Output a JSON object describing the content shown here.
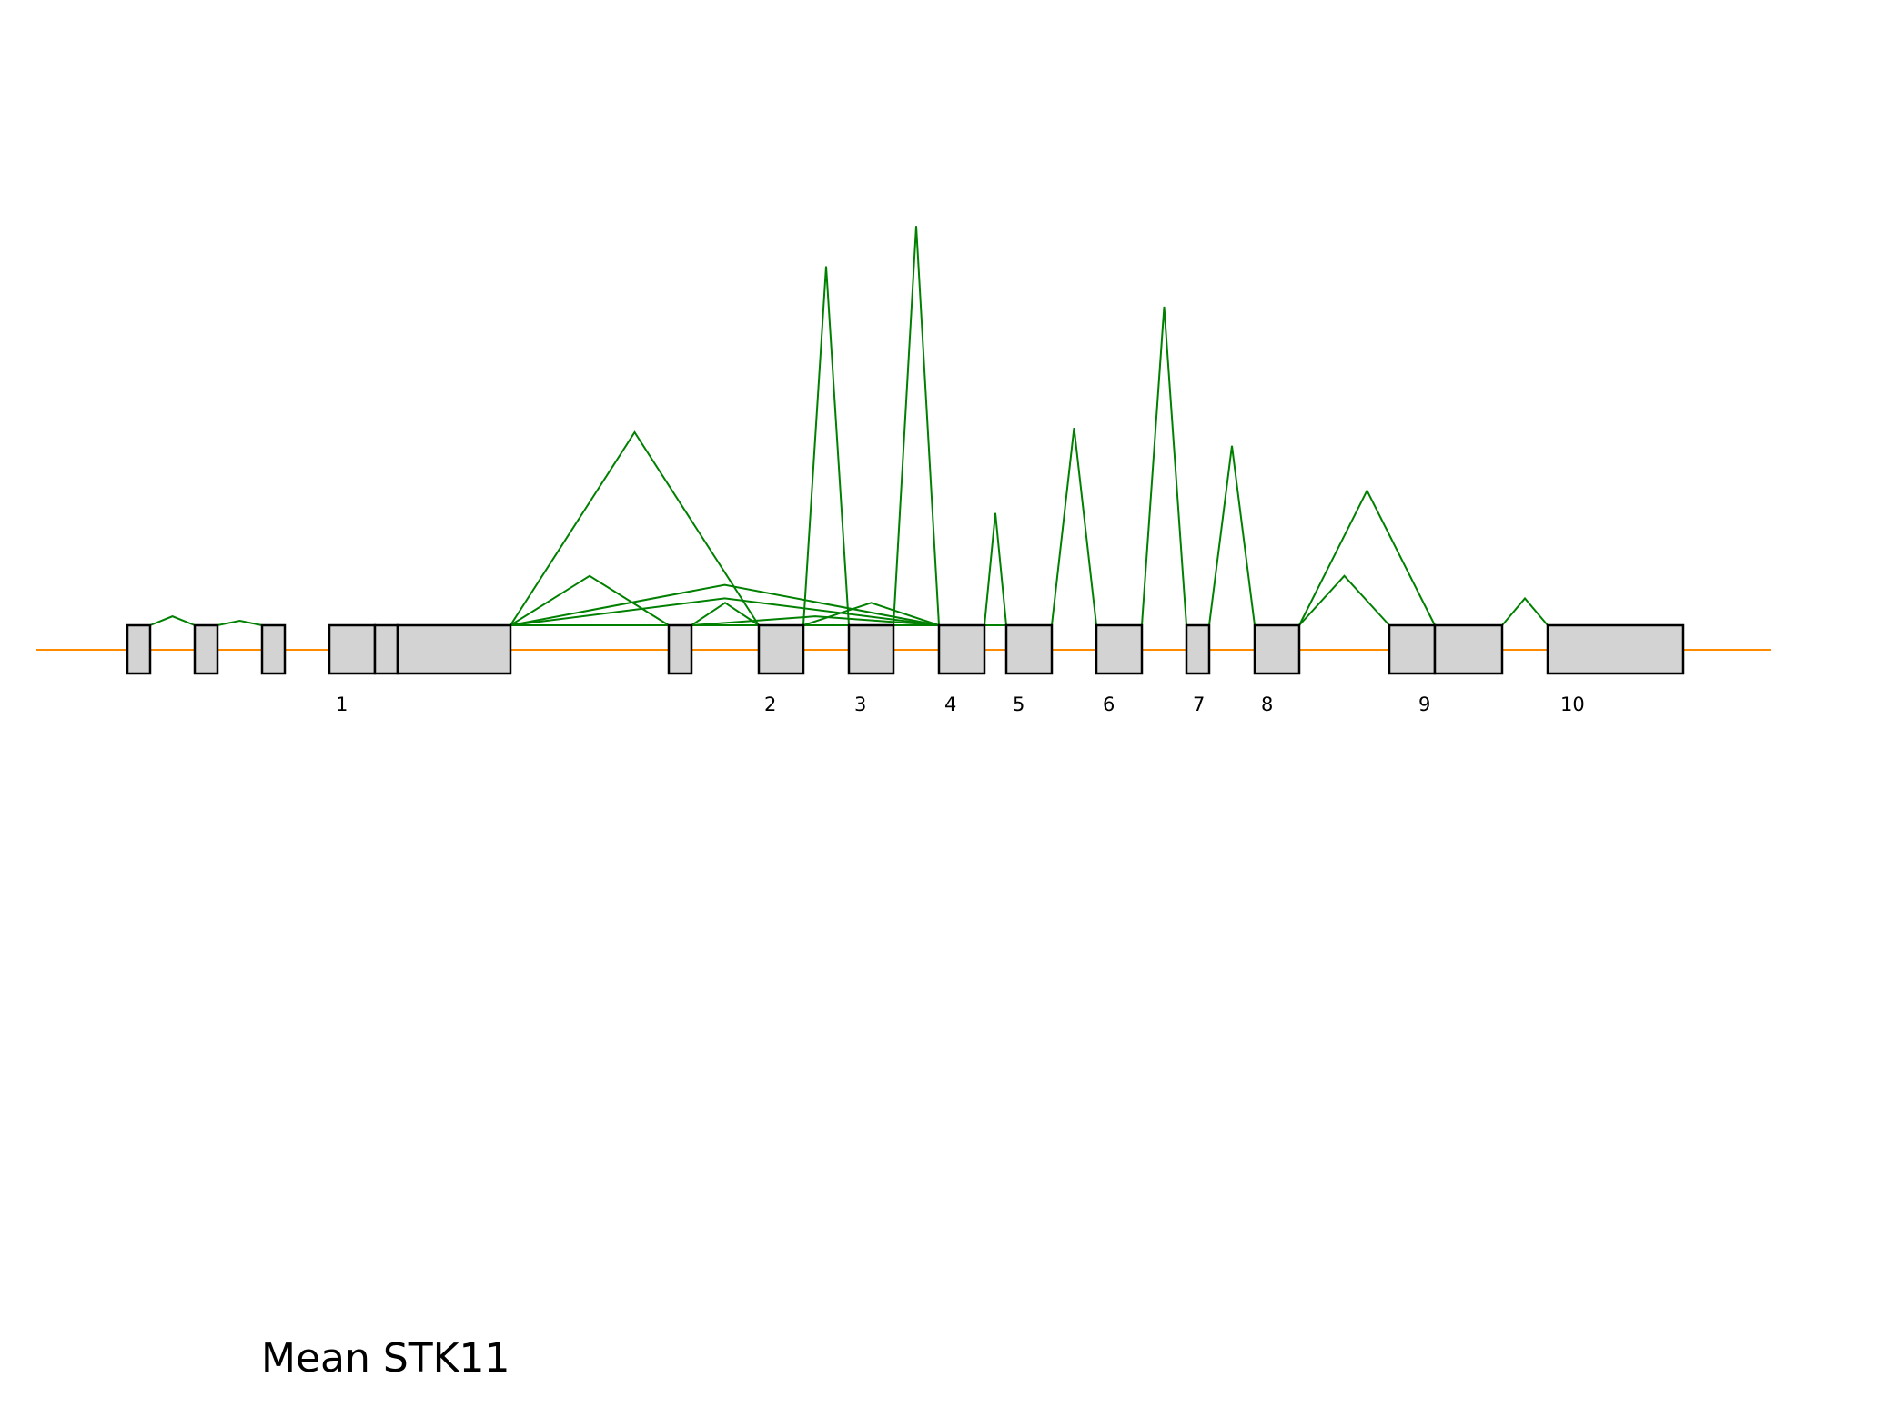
{
  "title": "Mean STK11",
  "colors": {
    "intron_line": "#ff8c00",
    "junction": "#008000",
    "exon_fill": "#d3d3d3",
    "exon_stroke": "#000000"
  },
  "exon_labels": [
    "1",
    "2",
    "3",
    "4",
    "5",
    "6",
    "7",
    "8",
    "9",
    "10"
  ],
  "junction_relative_heights": [
    0.02,
    0.01,
    0.43,
    0.11,
    0.06,
    0.05,
    0.09,
    0.8,
    0.89,
    0.25,
    0.44,
    0.71,
    0.4,
    0.3,
    0.11,
    0.05,
    0.02,
    0.0,
    0.06
  ]
}
